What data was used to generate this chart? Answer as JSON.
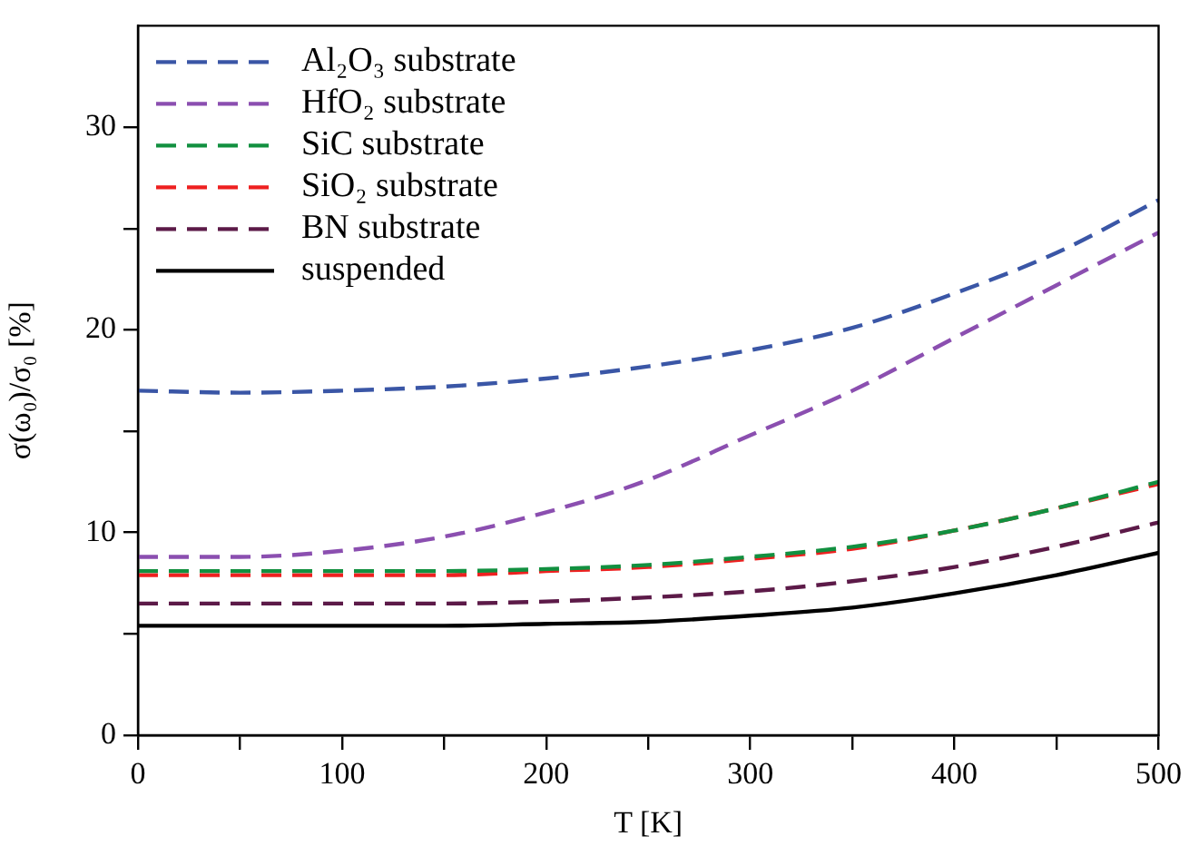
{
  "chart_data": {
    "type": "line",
    "xlabel": "T [K]",
    "ylabel": "σ(ω₀)/σ₀ [%]",
    "x": [
      0,
      50,
      100,
      150,
      200,
      250,
      300,
      350,
      400,
      450,
      500
    ],
    "xlim": [
      0,
      500
    ],
    "xticks": [
      0,
      {
        "value": 50,
        "label": null
      },
      100,
      {
        "value": 150,
        "label": null
      },
      200,
      {
        "value": 250,
        "label": null
      },
      300,
      {
        "value": 350,
        "label": null
      },
      400,
      {
        "value": 450,
        "label": null
      },
      500
    ],
    "ylim": [
      0,
      35
    ],
    "yticks": [
      0,
      {
        "value": 5,
        "label": null
      },
      10,
      {
        "value": 15,
        "label": null
      },
      20,
      {
        "value": 25,
        "label": null
      },
      30
    ],
    "grid": false,
    "legend": "top left",
    "marker": "none",
    "series": [
      {
        "name": "Al₂O₃ substrate",
        "color": "#3a56a6",
        "line_style": "dashed",
        "values": [
          17.0,
          16.9,
          17.0,
          17.2,
          17.6,
          18.2,
          19.0,
          20.1,
          21.8,
          23.8,
          26.4
        ]
      },
      {
        "name": "HfO₂ substrate",
        "color": "#8b4fb0",
        "line_style": "dashed",
        "values": [
          8.8,
          8.8,
          9.1,
          9.8,
          11.0,
          12.6,
          14.8,
          17.0,
          19.6,
          22.2,
          24.8
        ]
      },
      {
        "name": "SiC substrate",
        "color": "#129040",
        "line_style": "dashed",
        "values": [
          8.1,
          8.1,
          8.1,
          8.1,
          8.2,
          8.4,
          8.8,
          9.3,
          10.1,
          11.2,
          12.5
        ]
      },
      {
        "name": "SiO₂ substrate",
        "color": "#ee2020",
        "line_style": "dashed",
        "values": [
          7.9,
          7.9,
          7.9,
          7.9,
          8.1,
          8.3,
          8.7,
          9.2,
          10.1,
          11.2,
          12.4
        ]
      },
      {
        "name": "BN substrate",
        "color": "#5c1a48",
        "line_style": "dashed",
        "values": [
          6.5,
          6.5,
          6.5,
          6.5,
          6.6,
          6.8,
          7.1,
          7.6,
          8.3,
          9.3,
          10.5
        ]
      },
      {
        "name": "suspended",
        "color": "#000000",
        "line_style": "solid",
        "values": [
          5.4,
          5.4,
          5.4,
          5.4,
          5.5,
          5.6,
          5.9,
          6.3,
          7.0,
          7.9,
          9.0
        ]
      }
    ]
  }
}
